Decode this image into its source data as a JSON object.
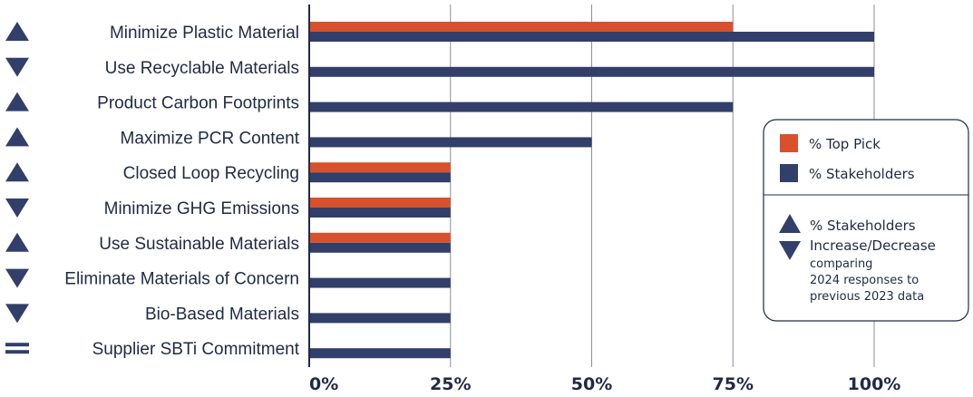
{
  "chart_data": {
    "type": "bar",
    "orientation": "horizontal",
    "categories": [
      "Minimize Plastic Material",
      "Use Recyclable Materials",
      "Product Carbon Footprints",
      "Maximize PCR Content",
      "Closed Loop Recycling",
      "Minimize GHG Emissions",
      "Use Sustainable Materials",
      "Eliminate Materials of Concern",
      "Bio-Based Materials",
      "Supplier SBTi Commitment"
    ],
    "series": [
      {
        "name": "% Top Pick",
        "color": "#d9512c",
        "values": [
          75,
          0,
          0,
          0,
          25,
          25,
          25,
          0,
          0,
          0
        ]
      },
      {
        "name": "% Stakeholders",
        "color": "#323f6b",
        "values": [
          100,
          100,
          75,
          50,
          25,
          25,
          25,
          25,
          25,
          25
        ]
      }
    ],
    "trend": [
      "up",
      "down",
      "up",
      "up",
      "up",
      "down",
      "up",
      "down",
      "down",
      "equal"
    ],
    "xlim": [
      0,
      100
    ],
    "xticks": [
      "0%",
      "25%",
      "50%",
      "75%",
      "100%"
    ],
    "grid": true,
    "legend_position": "right",
    "legend": {
      "items": [
        "% Top Pick",
        "% Stakeholders"
      ],
      "trend_title_1": "% Stakeholders",
      "trend_title_2": "Increase/Decrease",
      "trend_note": [
        "comparing",
        "2024 responses to",
        "previous 2023 data"
      ]
    },
    "trend_icon_color": "#323f6b"
  }
}
